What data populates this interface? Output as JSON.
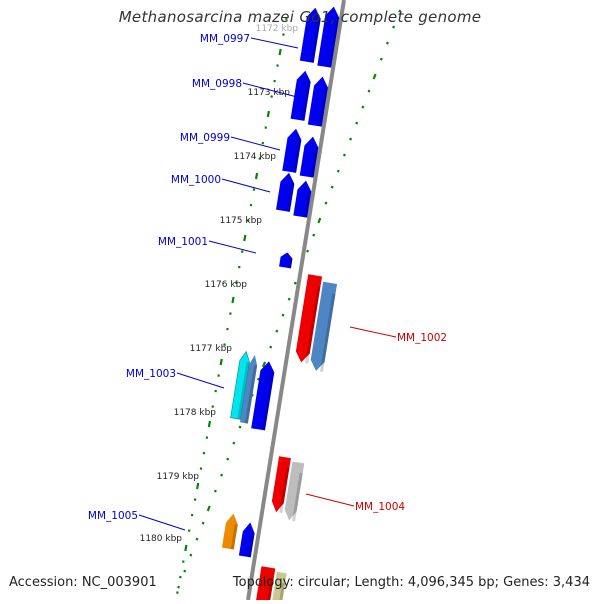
{
  "title": "Methanosarcina mazei Go1, complete genome",
  "accession": "Accession: NC_003901",
  "summary": "Topology: circular; Length: 4,096,345 bp; Genes: 3,434",
  "colors": {
    "forward_gene": "#0000ee",
    "forward_label": "#0000cc",
    "reverse_gene": "#ee0000",
    "reverse_label": "#cc0000",
    "backbone": "#888888",
    "tick": "#008800",
    "alt_blue": "#4d86c2",
    "cyan": "#00e5ee",
    "orange": "#ee8a00",
    "grey": "#bdbdbd",
    "khaki": "#c8c890"
  },
  "ticks": [
    {
      "label": "1172 kbp",
      "pos": 1172
    },
    {
      "label": "1173 kbp",
      "pos": 1173
    },
    {
      "label": "1174 kbp",
      "pos": 1174
    },
    {
      "label": "1175 kbp",
      "pos": 1175
    },
    {
      "label": "1176 kbp",
      "pos": 1176
    },
    {
      "label": "1177 kbp",
      "pos": 1177
    },
    {
      "label": "1178 kbp",
      "pos": 1178
    },
    {
      "label": "1179 kbp",
      "pos": 1179
    },
    {
      "label": "1180 kbp",
      "pos": 1180
    }
  ],
  "forward_labels": [
    {
      "label": "MM_0997"
    },
    {
      "label": "MM_0998"
    },
    {
      "label": "MM_0999"
    },
    {
      "label": "MM_1000"
    },
    {
      "label": "MM_1001"
    },
    {
      "label": "MM_1003"
    },
    {
      "label": "MM_1005"
    }
  ],
  "reverse_labels": [
    {
      "label": "MM_1002"
    },
    {
      "label": "MM_1004"
    }
  ]
}
